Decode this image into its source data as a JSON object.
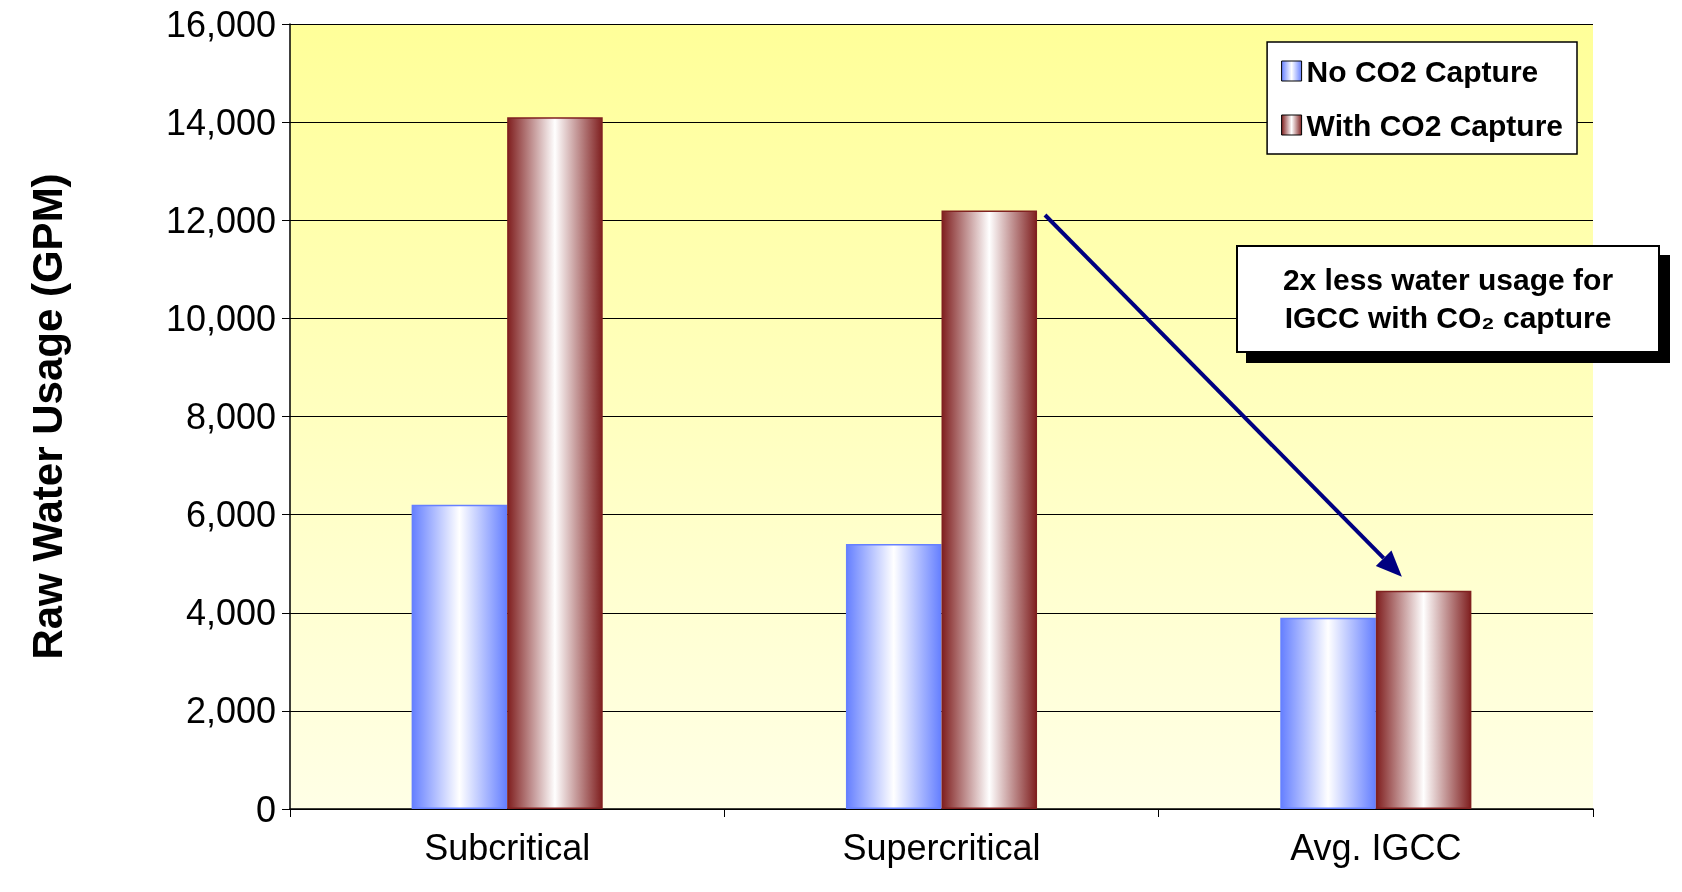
{
  "chart_data": {
    "type": "bar",
    "ylabel": "Raw Water Usage (GPM)",
    "categories": [
      "Subcritical",
      "Supercritical",
      "Avg. IGCC"
    ],
    "series": [
      {
        "name": "No CO2 Capture",
        "color": "#6680ff",
        "values": [
          6200,
          5400,
          3900
        ]
      },
      {
        "name": "With CO2 Capture",
        "color": "#802020",
        "values": [
          14100,
          12200,
          4450
        ]
      }
    ],
    "ylim": [
      0,
      16000
    ],
    "yticks": [
      0,
      {
        "value": 2000,
        "label": "2,000"
      },
      {
        "value": 4000,
        "label": "4,000"
      },
      {
        "value": 6000,
        "label": "6,000"
      },
      {
        "value": 8000,
        "label": "8,000"
      },
      {
        "value": 10000,
        "label": "10,000"
      },
      {
        "value": 12000,
        "label": "12,000"
      },
      {
        "value": 14000,
        "label": "14,000"
      },
      {
        "value": 16000,
        "label": "16,000"
      }
    ],
    "grid": "y",
    "legend": "top right",
    "annotations": [
      "2x less water usage for IGCC with CO₂ capture"
    ]
  }
}
